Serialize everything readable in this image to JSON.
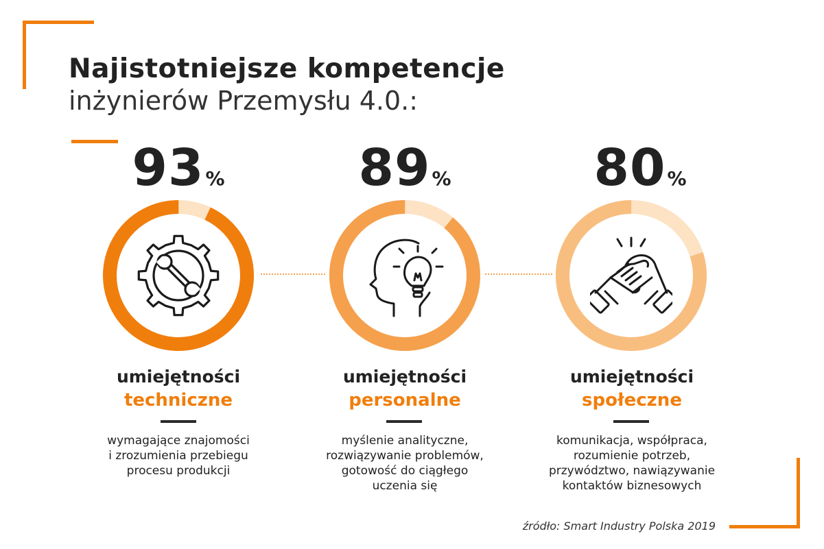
{
  "title": {
    "line1": "Najistotniejsze kompetencje",
    "line2": "inżynierów Przemysłu 4.0.:"
  },
  "colors": {
    "accent": "#f07e0c",
    "ring1": "#f07e0c",
    "ring2": "#f5a04c",
    "ring3": "#f8be7f",
    "remainder": "#fde2c4",
    "text": "#222222"
  },
  "chart_data": {
    "type": "pie",
    "title": "Najistotniejsze kompetencje inżynierów Przemysłu 4.0.:",
    "categories": [
      "umiejętności techniczne",
      "umiejętności personalne",
      "umiejętności społeczne"
    ],
    "values": [
      93,
      89,
      80
    ],
    "unit": "%"
  },
  "items": [
    {
      "value": "93",
      "unit": "%",
      "label_line1": "umiejętności",
      "label_line2": "techniczne",
      "icon": "gear-wrench-icon",
      "description": [
        "wymagające znajomości",
        "i zrozumienia przebiegu",
        "procesu produkcji"
      ]
    },
    {
      "value": "89",
      "unit": "%",
      "label_line1": "umiejętności",
      "label_line2": "personalne",
      "icon": "head-lightbulb-icon",
      "description": [
        "myślenie analityczne,",
        "rozwiązywanie problemów,",
        "gotowość do ciągłego",
        "uczenia się"
      ]
    },
    {
      "value": "80",
      "unit": "%",
      "label_line1": "umiejętności",
      "label_line2": "społeczne",
      "icon": "handshake-icon",
      "description": [
        "komunikacja, współpraca,",
        "rozumienie potrzeb,",
        "przywództwo, nawiązywanie",
        "kontaktów biznesowych"
      ]
    }
  ],
  "source": "źródło: Smart Industry Polska 2019"
}
